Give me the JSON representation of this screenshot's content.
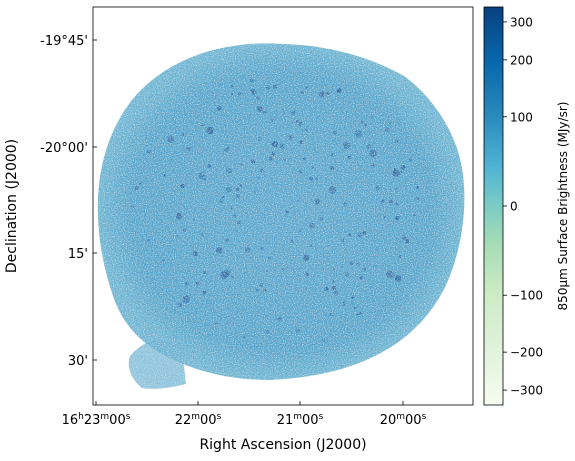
{
  "chart_data": {
    "type": "heatmap",
    "title": "",
    "xlabel": "Right Ascension (J2000)",
    "ylabel": "Declination (J2000)",
    "x_ticks": [
      {
        "label": "16h23m00s",
        "h": "16",
        "m": "23",
        "s": "00"
      },
      {
        "label": "22m00s",
        "m": "22",
        "s": "00"
      },
      {
        "label": "21m00s",
        "m": "21",
        "s": "00"
      },
      {
        "label": "20m00s",
        "m": "20",
        "s": "00"
      }
    ],
    "y_ticks": [
      "-19°45'",
      "-20°00'",
      "15'",
      "30'"
    ],
    "colorbar": {
      "label": "850μm Surface Brightness (MJy/sr)",
      "ticks": [
        "300",
        "200",
        "100",
        "0",
        "−100",
        "−200",
        "−300"
      ],
      "tick_values": [
        300,
        200,
        100,
        0,
        -100,
        -200,
        -300
      ],
      "range": [
        -350,
        350
      ],
      "stretch": "asinh",
      "colormap": "GnBu",
      "colors": [
        "#f7fcf0",
        "#ccebc5",
        "#a8ddb5",
        "#7bccc4",
        "#4eb3d3",
        "#2b8cbe",
        "#08589e",
        "#084081"
      ]
    },
    "map": {
      "shape": "circular field with an extension at lower left",
      "background_color": "#5ba8cf",
      "source_color": "#2c6fa8"
    }
  }
}
